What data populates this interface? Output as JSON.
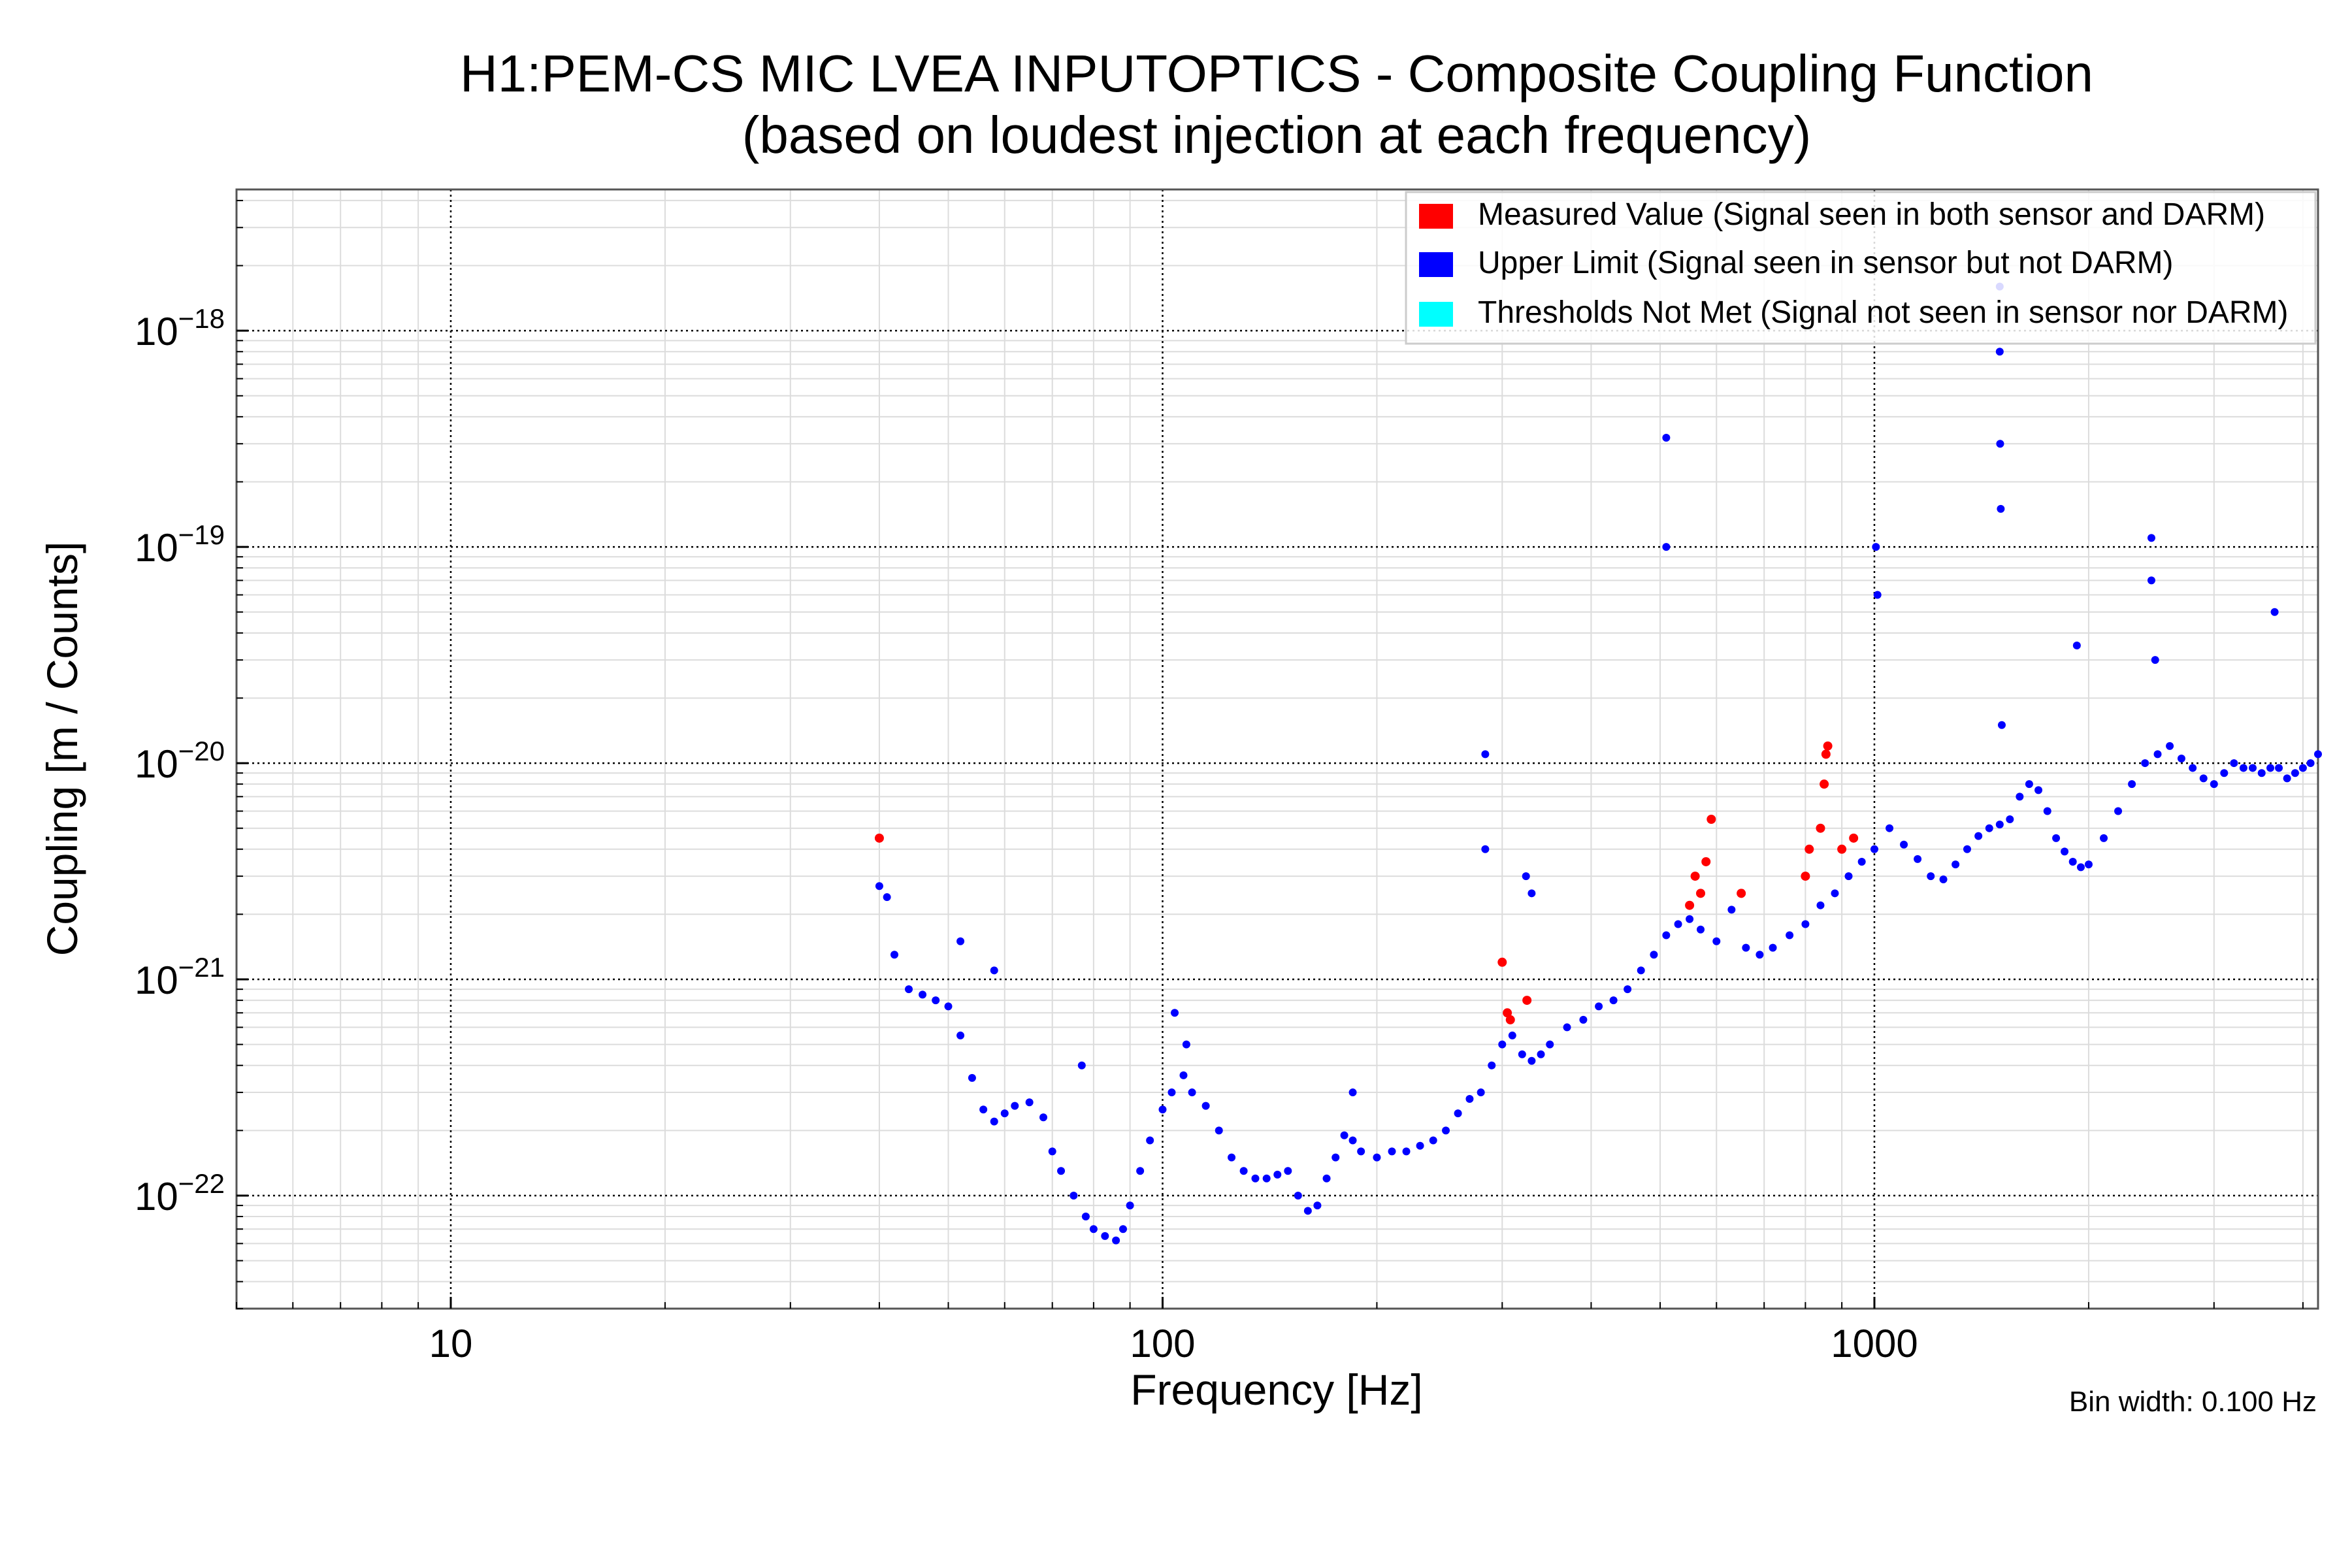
{
  "chart_data": {
    "type": "scatter",
    "title": "H1:PEM-CS MIC LVEA INPUTOPTICS - Composite Coupling Function",
    "subtitle": "(based on loudest injection at each frequency)",
    "xlabel": "Frequency [Hz]",
    "ylabel": "Coupling [m / Counts]",
    "xscale": "log",
    "yscale": "log",
    "xlim": [
      5,
      4200
    ],
    "ylim": [
      3e-23,
      4.5e-18
    ],
    "x_ticks": [
      {
        "value": 10,
        "label": "10"
      },
      {
        "value": 100,
        "label": "100"
      },
      {
        "value": 1000,
        "label": "1000"
      }
    ],
    "y_ticks": [
      {
        "value": 1e-22,
        "base": "10",
        "exp": "−22"
      },
      {
        "value": 1e-21,
        "base": "10",
        "exp": "−21"
      },
      {
        "value": 1e-20,
        "base": "10",
        "exp": "−20"
      },
      {
        "value": 1e-19,
        "base": "10",
        "exp": "−19"
      },
      {
        "value": 1e-18,
        "base": "10",
        "exp": "−18"
      }
    ],
    "grid": true,
    "legend_position": "top-right",
    "legend": [
      {
        "label": "Measured Value (Signal seen in both sensor and DARM)",
        "color": "#ff0000"
      },
      {
        "label": "Upper Limit (Signal seen in sensor but not DARM)",
        "color": "#0000ff"
      },
      {
        "label": "Thresholds Not Met (Signal not seen in sensor nor DARM)",
        "color": "#00ffff"
      }
    ],
    "annotation": "Bin width: 0.100 Hz",
    "series": [
      {
        "name": "Upper Limit (Signal seen in sensor but not DARM)",
        "color": "#0000ff",
        "x": [
          40,
          41,
          42,
          44,
          46,
          48,
          50,
          52,
          54,
          56,
          58,
          60,
          62,
          65,
          68,
          70,
          72,
          75,
          78,
          80,
          83,
          86,
          88,
          90,
          93,
          96,
          100,
          103,
          107,
          110,
          115,
          120,
          125,
          130,
          135,
          140,
          145,
          150,
          155,
          160,
          165,
          170,
          175,
          180,
          185,
          190,
          200,
          210,
          220,
          230,
          240,
          250,
          260,
          270,
          280,
          290,
          300,
          310,
          320,
          330,
          340,
          350,
          370,
          390,
          410,
          430,
          450,
          470,
          490,
          510,
          530,
          550,
          570,
          600,
          630,
          660,
          690,
          720,
          760,
          800,
          840,
          880,
          920,
          960,
          1000,
          1050,
          1100,
          1150,
          1200,
          1250,
          1300,
          1350,
          1400,
          1450,
          1500,
          1550,
          1600,
          1650,
          1700,
          1750,
          1800,
          1850,
          1900,
          1950,
          2000,
          2100,
          2200,
          2300,
          2400,
          2500,
          2600,
          2700,
          2800,
          2900,
          3000,
          3100,
          3200,
          3300,
          3400,
          3500,
          3600,
          3700,
          3800,
          3900,
          4000,
          4100,
          4200,
          52,
          58,
          77,
          104,
          108,
          185,
          284,
          284,
          324,
          330,
          510,
          510,
          1005,
          1010,
          1500,
          1500,
          1502,
          1505,
          1510,
          1925,
          2450,
          2450,
          2480,
          3650
        ],
        "y": [
          2.7e-21,
          2.4e-21,
          1.3e-21,
          9e-22,
          8.5e-22,
          8e-22,
          7.5e-22,
          5.5e-22,
          3.5e-22,
          2.5e-22,
          2.2e-22,
          2.4e-22,
          2.6e-22,
          2.7e-22,
          2.3e-22,
          1.6e-22,
          1.3e-22,
          1e-22,
          8e-23,
          7e-23,
          6.5e-23,
          6.2e-23,
          7e-23,
          9e-23,
          1.3e-22,
          1.8e-22,
          2.5e-22,
          3e-22,
          3.6e-22,
          3e-22,
          2.6e-22,
          2e-22,
          1.5e-22,
          1.3e-22,
          1.2e-22,
          1.2e-22,
          1.25e-22,
          1.3e-22,
          1e-22,
          8.5e-23,
          9e-23,
          1.2e-22,
          1.5e-22,
          1.9e-22,
          1.8e-22,
          1.6e-22,
          1.5e-22,
          1.6e-22,
          1.6e-22,
          1.7e-22,
          1.8e-22,
          2e-22,
          2.4e-22,
          2.8e-22,
          3e-22,
          4e-22,
          5e-22,
          5.5e-22,
          4.5e-22,
          4.2e-22,
          4.5e-22,
          5e-22,
          6e-22,
          6.5e-22,
          7.5e-22,
          8e-22,
          9e-22,
          1.1e-21,
          1.3e-21,
          1.6e-21,
          1.8e-21,
          1.9e-21,
          1.7e-21,
          1.5e-21,
          2.1e-21,
          1.4e-21,
          1.3e-21,
          1.4e-21,
          1.6e-21,
          1.8e-21,
          2.2e-21,
          2.5e-21,
          3e-21,
          3.5e-21,
          4e-21,
          5e-21,
          4.2e-21,
          3.6e-21,
          3e-21,
          2.9e-21,
          3.4e-21,
          4e-21,
          4.6e-21,
          5e-21,
          5.2e-21,
          5.5e-21,
          7e-21,
          8e-21,
          7.5e-21,
          6e-21,
          4.5e-21,
          3.9e-21,
          3.5e-21,
          3.3e-21,
          3.4e-21,
          4.5e-21,
          6e-21,
          8e-21,
          1e-20,
          1.1e-20,
          1.2e-20,
          1.05e-20,
          9.5e-21,
          8.5e-21,
          8e-21,
          9e-21,
          1e-20,
          9.5e-21,
          9.5e-21,
          9e-21,
          9.5e-21,
          9.5e-21,
          8.5e-21,
          9e-21,
          9.5e-21,
          1e-20,
          1.1e-20,
          1.5e-21,
          1.1e-21,
          4e-22,
          7e-22,
          5e-22,
          3e-22,
          1.1e-20,
          4e-21,
          3e-21,
          2.5e-21,
          3.2e-19,
          1e-19,
          1e-19,
          6e-20,
          1.6e-18,
          8e-19,
          3e-19,
          1.5e-19,
          1.5e-20,
          3.5e-20,
          1.1e-19,
          7e-20,
          3e-20,
          5e-20
        ]
      },
      {
        "name": "Measured Value (Signal seen in both sensor and DARM)",
        "color": "#ff0000",
        "x": [
          40,
          300,
          305,
          308,
          325,
          550,
          560,
          570,
          580,
          590,
          650,
          800,
          810,
          840,
          850,
          855,
          860,
          900,
          935
        ],
        "y": [
          4.5e-21,
          1.2e-21,
          7e-22,
          6.5e-22,
          8e-22,
          2.2e-21,
          3e-21,
          2.5e-21,
          3.5e-21,
          5.5e-21,
          2.5e-21,
          3e-21,
          4e-21,
          5e-21,
          8e-21,
          1.1e-20,
          1.2e-20,
          4e-21,
          4.5e-21
        ]
      }
    ]
  }
}
